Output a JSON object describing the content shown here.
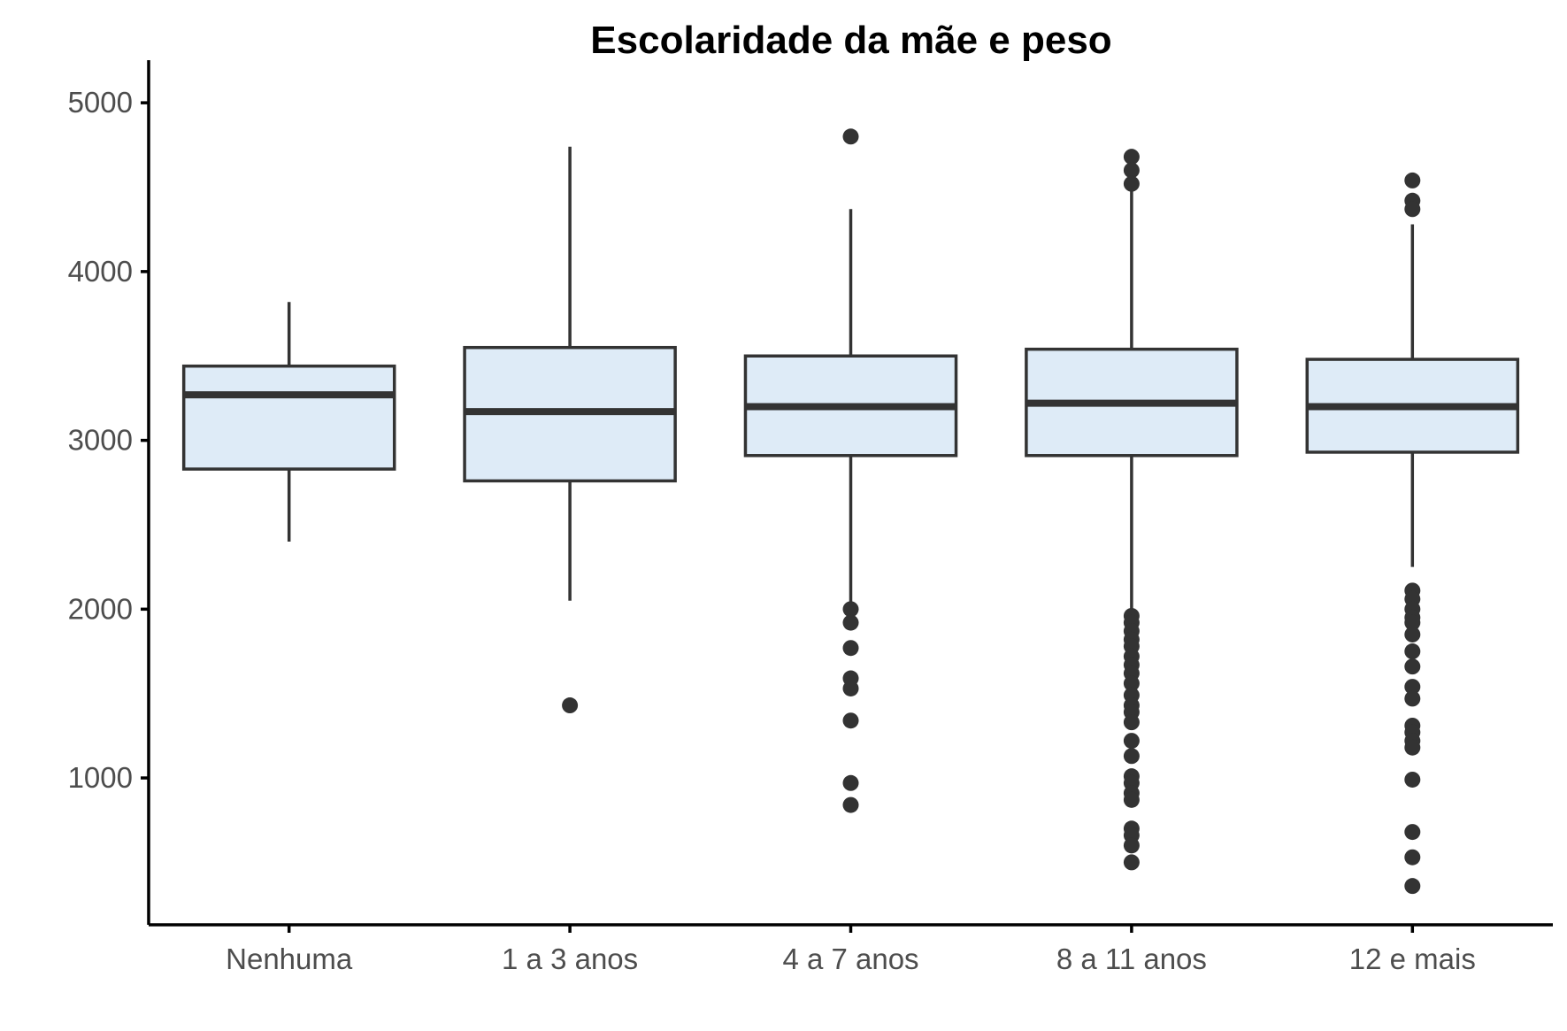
{
  "chart_data": {
    "type": "boxplot",
    "title": "Escolaridade da mãe e peso",
    "xlabel": "",
    "ylabel": "",
    "ylim": [
      130,
      5200
    ],
    "y_ticks": [
      1000,
      2000,
      3000,
      4000,
      5000
    ],
    "grid": false,
    "legend": "none",
    "box_fill": "#deebf7",
    "stroke_color": "#333333",
    "categories": [
      "Nenhuma",
      "1 a 3 anos",
      "4 a 7 anos",
      "8 a 11 anos",
      "12 e mais"
    ],
    "boxes": [
      {
        "category": "Nenhuma",
        "whisker_low": 2400,
        "q1": 2830,
        "median": 3270,
        "q3": 3440,
        "whisker_high": 3820,
        "outliers": []
      },
      {
        "category": "1 a 3 anos",
        "whisker_low": 2050,
        "q1": 2760,
        "median": 3170,
        "q3": 3550,
        "whisker_high": 4740,
        "outliers": [
          1430
        ]
      },
      {
        "category": "4 a 7 anos",
        "whisker_low": 2010,
        "q1": 2910,
        "median": 3200,
        "q3": 3500,
        "whisker_high": 4370,
        "outliers": [
          4800,
          2000,
          1920,
          1770,
          1590,
          1530,
          1340,
          970,
          840
        ]
      },
      {
        "category": "8 a 11 anos",
        "whisker_low": 1980,
        "q1": 2910,
        "median": 3220,
        "q3": 3540,
        "whisker_high": 4500,
        "outliers": [
          4680,
          4600,
          4520,
          1960,
          1920,
          1870,
          1820,
          1780,
          1720,
          1670,
          1620,
          1560,
          1490,
          1430,
          1390,
          1330,
          1220,
          1130,
          1010,
          970,
          910,
          870,
          700,
          660,
          600,
          500
        ]
      },
      {
        "category": "12 e mais",
        "whisker_low": 2250,
        "q1": 2930,
        "median": 3200,
        "q3": 3480,
        "whisker_high": 4280,
        "outliers": [
          4540,
          4420,
          4370,
          2110,
          2060,
          2000,
          1950,
          1920,
          1850,
          1750,
          1660,
          1540,
          1470,
          1310,
          1270,
          1220,
          1180,
          990,
          680,
          530,
          360
        ]
      }
    ]
  }
}
